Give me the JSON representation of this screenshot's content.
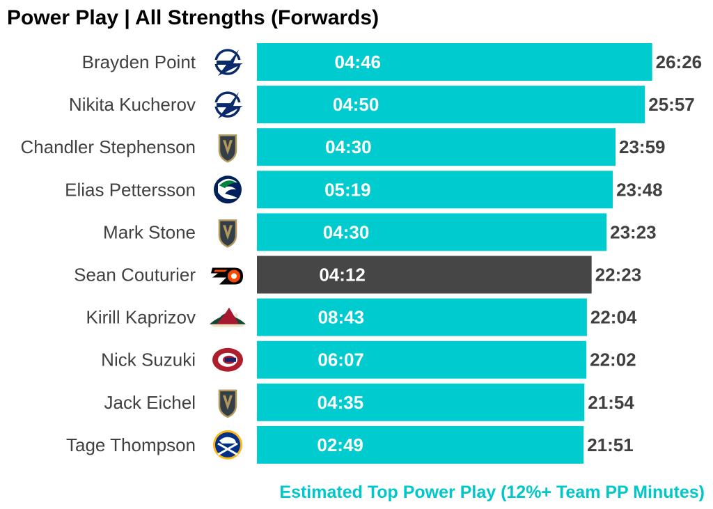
{
  "chart_data": {
    "type": "bar",
    "orientation": "horizontal",
    "title": "Power Play | All Strengths (Forwards)",
    "caption": "Estimated Top Power Play (12%+ Team PP Minutes)",
    "xlim_minutes": [
      0,
      26.45
    ],
    "categories": [
      "Brayden Point",
      "Nikita Kucherov",
      "Chandler Stephenson",
      "Elias Pettersson",
      "Mark Stone",
      "Sean Couturier",
      "Kirill Kaprizov",
      "Nick Suzuki",
      "Jack Eichel",
      "Tage Thompson"
    ],
    "series": [
      {
        "name": "All Strengths TOI",
        "values": [
          "26:26",
          "25:57",
          "23:59",
          "23:48",
          "23:23",
          "22:23",
          "22:04",
          "22:02",
          "21:54",
          "21:51"
        ]
      },
      {
        "name": "Power Play TOI",
        "values": [
          "04:46",
          "04:50",
          "04:30",
          "05:19",
          "04:30",
          "04:12",
          "08:43",
          "06:07",
          "04:35",
          "02:49"
        ]
      }
    ],
    "teams": [
      "tampa-bay-lightning",
      "tampa-bay-lightning",
      "vegas-golden-knights",
      "vancouver-canucks",
      "vegas-golden-knights",
      "philadelphia-flyers",
      "minnesota-wild",
      "montreal-canadiens",
      "vegas-golden-knights",
      "buffalo-sabres"
    ],
    "highlight": [
      "Sean Couturier"
    ]
  },
  "colors": {
    "bar": "#00cccf",
    "highlight": "#464646",
    "caption": "#00c7c9",
    "label": "#404040",
    "lightning": "#0a2a6b",
    "knights_gold": "#b4975a",
    "knights_dark": "#333f48",
    "canucks": "#00205b",
    "canucks_green": "#00843d",
    "flyers": "#f74902",
    "wild_green": "#154734",
    "wild_red": "#a6192e",
    "canadiens_red": "#af1e2d",
    "canadiens_blue": "#192168",
    "sabres_blue": "#003087",
    "sabres_gold": "#fcb514"
  }
}
